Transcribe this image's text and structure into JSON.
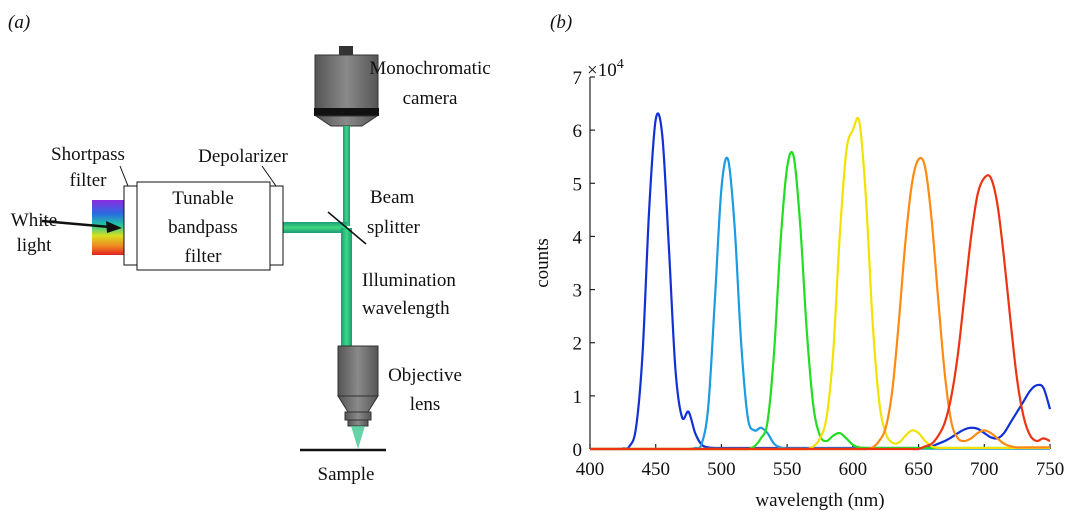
{
  "panel_labels": [
    "(a)",
    "(b)"
  ],
  "diagram": {
    "camera": [
      "Monochromatic",
      "camera"
    ],
    "shortpass": [
      "Shortpass",
      "filter"
    ],
    "depolarizer": [
      "Depolarizer"
    ],
    "tunable": [
      "Tunable",
      "bandpass",
      "filter"
    ],
    "white_light": [
      "White",
      "light"
    ],
    "beam_splitter": [
      "Beam",
      "splitter"
    ],
    "illumination": [
      "Illumination",
      "wavelength"
    ],
    "objective": [
      "Objective",
      "lens"
    ],
    "sample": [
      "Sample"
    ]
  },
  "chart_data": {
    "type": "line",
    "x_label": "wavelength (nm)",
    "y_label": "counts",
    "y_multiplier": {
      "base": "×10",
      "exponent": "4"
    },
    "xlim": [
      400,
      750
    ],
    "ylim": [
      0,
      7
    ],
    "xticks": [
      400,
      450,
      500,
      550,
      600,
      650,
      700,
      750
    ],
    "yticks": [
      0,
      1,
      2,
      3,
      4,
      5,
      6,
      7
    ],
    "x": [
      400,
      405,
      410,
      415,
      420,
      425,
      430,
      435,
      440,
      445,
      450,
      455,
      460,
      465,
      470,
      475,
      480,
      485,
      490,
      495,
      500,
      505,
      510,
      515,
      520,
      525,
      530,
      535,
      540,
      545,
      550,
      555,
      560,
      565,
      570,
      575,
      580,
      585,
      590,
      595,
      600,
      605,
      610,
      615,
      620,
      625,
      630,
      635,
      640,
      645,
      650,
      655,
      660,
      665,
      670,
      675,
      680,
      685,
      690,
      695,
      700,
      705,
      710,
      715,
      720,
      725,
      730,
      735,
      740,
      745,
      750
    ],
    "series": [
      {
        "color": "#1131d6",
        "values": [
          0,
          0,
          0,
          0,
          0,
          0.01,
          0.05,
          0.4,
          1.8,
          4.5,
          6.2,
          5.9,
          3.8,
          1.5,
          0.6,
          0.7,
          0.3,
          0.08,
          0.03,
          0.02,
          0.02,
          0.02,
          0.02,
          0.02,
          0.02,
          0.02,
          0.02,
          0.02,
          0.02,
          0.02,
          0.02,
          0.02,
          0.02,
          0.02,
          0.02,
          0.02,
          0.02,
          0.02,
          0.02,
          0.02,
          0.02,
          0.02,
          0.02,
          0.02,
          0.02,
          0.02,
          0.02,
          0.02,
          0.02,
          0.02,
          0.02,
          0.02,
          0.05,
          0.1,
          0.15,
          0.22,
          0.3,
          0.37,
          0.4,
          0.38,
          0.3,
          0.22,
          0.2,
          0.3,
          0.5,
          0.7,
          0.9,
          1.1,
          1.2,
          1.15,
          0.75
        ]
      },
      {
        "color": "#1b9be2",
        "values": [
          0,
          0,
          0,
          0,
          0,
          0,
          0,
          0,
          0,
          0,
          0,
          0,
          0,
          0,
          0,
          0,
          0.02,
          0.1,
          0.8,
          2.8,
          4.9,
          5.45,
          4.2,
          2.0,
          0.6,
          0.35,
          0.4,
          0.3,
          0.1,
          0.03,
          0.01,
          0.01,
          0.01,
          0.01,
          0.01,
          0.01,
          0.01,
          0.01,
          0.01,
          0.01,
          0.01,
          0.01,
          0.01,
          0.01,
          0.01,
          0.01,
          0.01,
          0.01,
          0.01,
          0.01,
          0.01,
          0.01,
          0.01,
          0.01,
          0.01,
          0.01,
          0.01,
          0.01,
          0.01,
          0.01,
          0.01,
          0.01,
          0.01,
          0.01,
          0.01,
          0.01,
          0.01,
          0.01,
          0.01,
          0.01,
          0.01
        ]
      },
      {
        "color": "#22dd22",
        "values": [
          0,
          0,
          0,
          0,
          0,
          0,
          0,
          0,
          0,
          0,
          0,
          0,
          0,
          0,
          0,
          0,
          0,
          0,
          0,
          0,
          0,
          0,
          0,
          0,
          0,
          0.05,
          0.2,
          0.5,
          1.8,
          3.9,
          5.3,
          5.5,
          4.2,
          2.2,
          0.8,
          0.25,
          0.15,
          0.25,
          0.3,
          0.2,
          0.08,
          0.03,
          0.02,
          0.02,
          0.02,
          0.02,
          0.02,
          0.02,
          0.02,
          0.02,
          0.02,
          0.02,
          0.02,
          0.02,
          0.02,
          0.02,
          0.02,
          0.02,
          0.02,
          0.02,
          0.02,
          0.02,
          0.02,
          0.02,
          0.02,
          0.02,
          0.02,
          0.02,
          0.02,
          0.02,
          0.02
        ]
      },
      {
        "color": "#f2e200",
        "values": [
          0,
          0,
          0,
          0,
          0,
          0,
          0,
          0,
          0,
          0,
          0,
          0,
          0,
          0,
          0,
          0,
          0,
          0,
          0,
          0,
          0,
          0,
          0,
          0,
          0,
          0,
          0,
          0,
          0,
          0,
          0,
          0,
          0,
          0,
          0.05,
          0.2,
          0.6,
          1.8,
          4.0,
          5.6,
          6.0,
          6.15,
          4.7,
          2.4,
          0.9,
          0.3,
          0.12,
          0.12,
          0.25,
          0.35,
          0.3,
          0.15,
          0.05,
          0.02,
          0.02,
          0.02,
          0.02,
          0.02,
          0.02,
          0.02,
          0.02,
          0.02,
          0.02,
          0.02,
          0.02,
          0.02,
          0.02,
          0.02,
          0.02,
          0.02,
          0.02
        ]
      },
      {
        "color": "#ff8a12",
        "values": [
          0,
          0,
          0,
          0,
          0,
          0,
          0,
          0,
          0,
          0,
          0,
          0,
          0,
          0,
          0,
          0,
          0,
          0,
          0,
          0,
          0,
          0,
          0,
          0,
          0,
          0,
          0,
          0,
          0,
          0,
          0,
          0,
          0,
          0,
          0,
          0,
          0,
          0,
          0,
          0,
          0,
          0,
          0,
          0.03,
          0.15,
          0.4,
          1.1,
          2.4,
          3.9,
          5.0,
          5.45,
          5.3,
          4.3,
          2.8,
          1.4,
          0.5,
          0.2,
          0.15,
          0.2,
          0.3,
          0.35,
          0.3,
          0.2,
          0.1,
          0.05,
          0.03,
          0.03,
          0.03,
          0.03,
          0.03,
          0.03
        ]
      },
      {
        "color": "#ee3311",
        "values": [
          0,
          0,
          0,
          0,
          0,
          0,
          0,
          0,
          0,
          0,
          0,
          0,
          0,
          0,
          0,
          0,
          0,
          0,
          0,
          0,
          0,
          0,
          0,
          0,
          0,
          0,
          0,
          0,
          0,
          0,
          0,
          0,
          0,
          0,
          0,
          0,
          0,
          0,
          0,
          0,
          0,
          0,
          0,
          0,
          0,
          0,
          0,
          0,
          0,
          0,
          0,
          0.05,
          0.1,
          0.25,
          0.5,
          1.0,
          1.8,
          2.9,
          4.0,
          4.8,
          5.1,
          5.1,
          4.6,
          3.6,
          2.4,
          1.3,
          0.6,
          0.25,
          0.15,
          0.2,
          0.15
        ]
      }
    ]
  }
}
